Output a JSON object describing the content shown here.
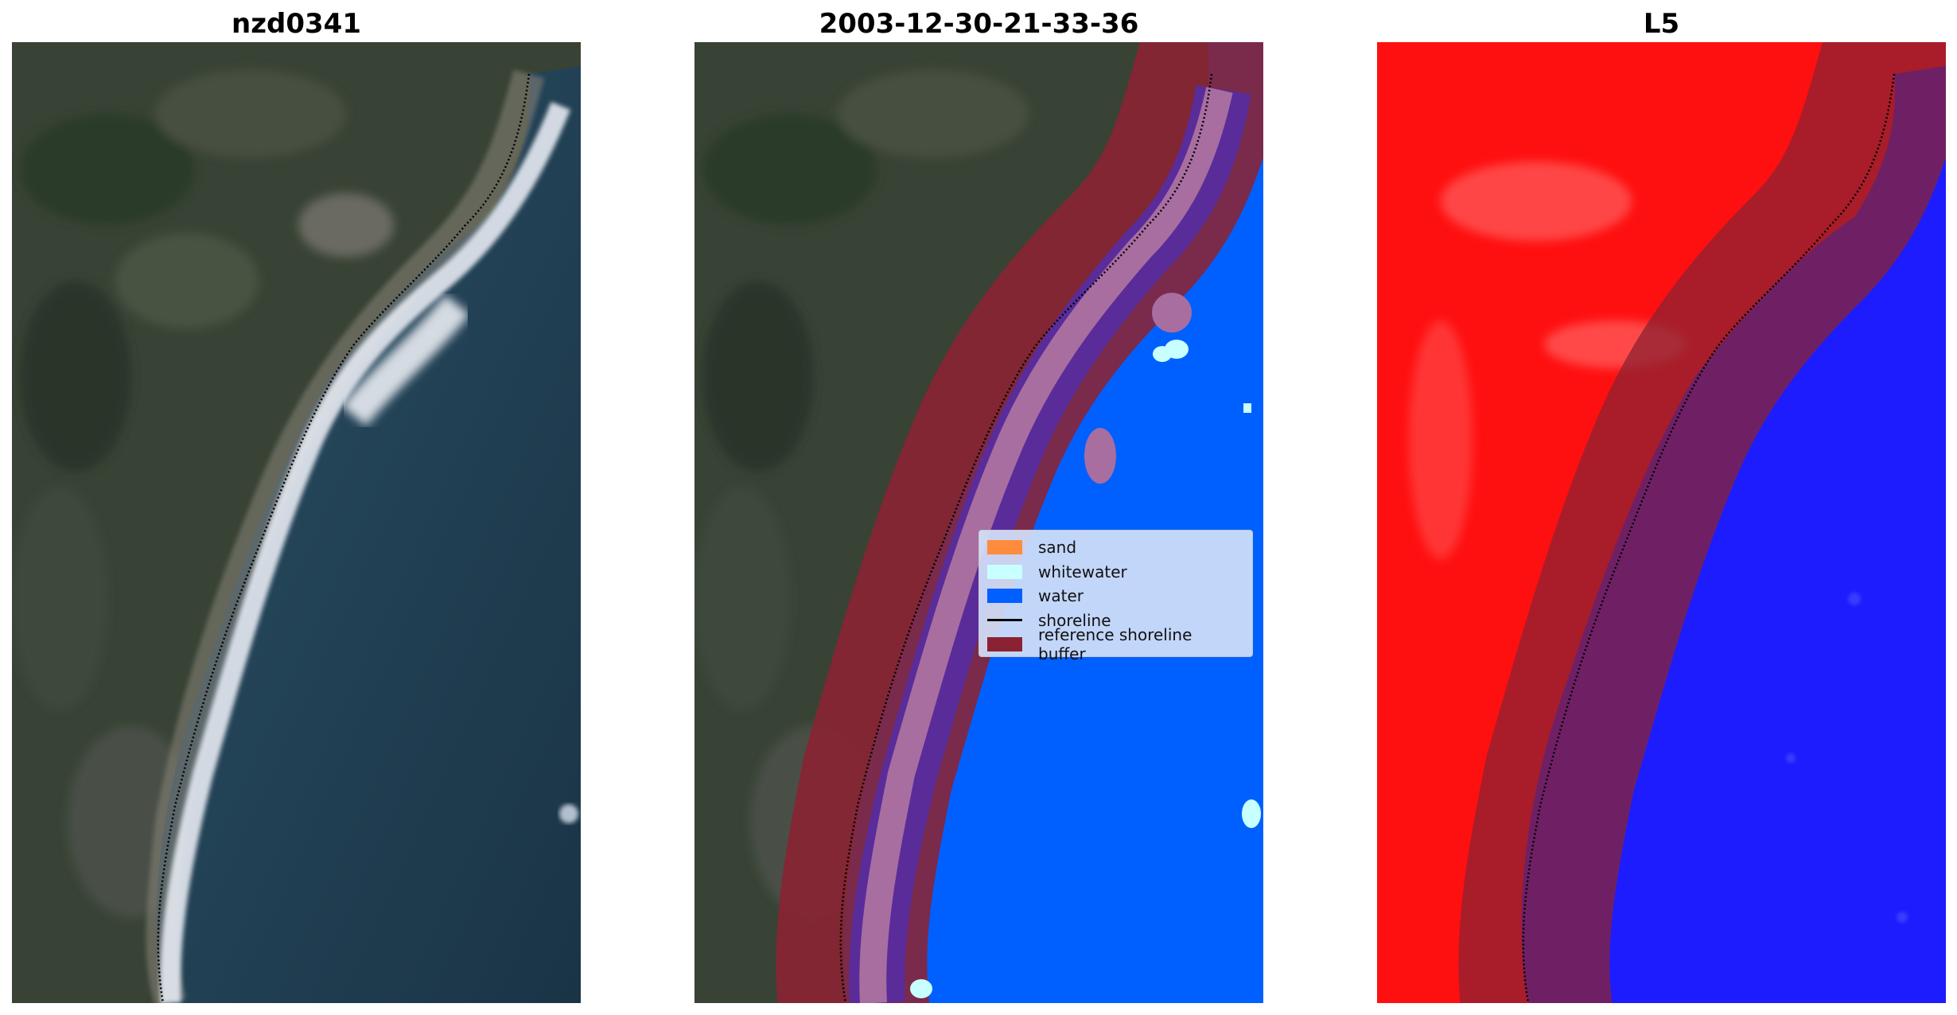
{
  "panels": [
    {
      "title": "nzd0341",
      "type": "rgb-image"
    },
    {
      "title": "2003-12-30-21-33-36",
      "type": "classification"
    },
    {
      "title": "L5",
      "type": "index-image"
    }
  ],
  "legend": {
    "items": [
      {
        "label": "sand",
        "kind": "patch",
        "color": "#ff8c3c"
      },
      {
        "label": "whitewater",
        "kind": "patch",
        "color": "#c8ffff"
      },
      {
        "label": "water",
        "kind": "patch",
        "color": "#0060ff"
      },
      {
        "label": "shoreline",
        "kind": "line",
        "color": "#000000"
      },
      {
        "label": "reference shoreline buffer",
        "kind": "patch",
        "color": "#8b2232"
      }
    ]
  },
  "colors": {
    "land": "#3a4437",
    "ocean": "#1d3a4c",
    "surf": "#e8ecf4",
    "classified_sand": "#a86ea0",
    "classified_water_band": "#5a2c9a",
    "buffer": "#8b2232",
    "index_land": "#ff1010",
    "index_water": "#1c1cff"
  }
}
